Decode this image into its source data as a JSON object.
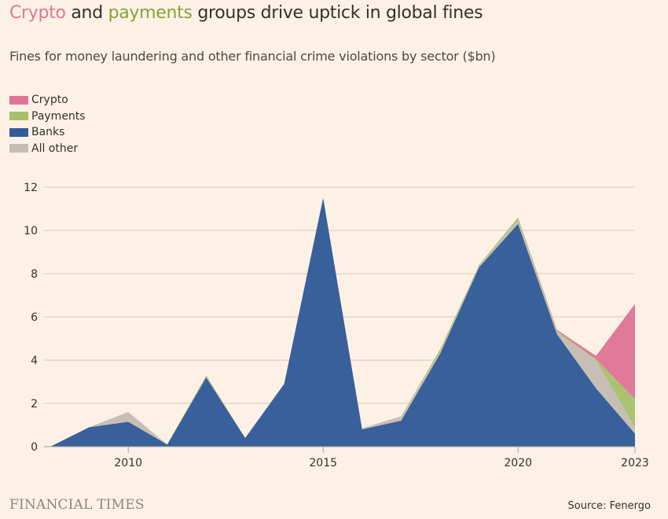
{
  "title_parts": [
    {
      "text": "Crypto",
      "color": "#e07597"
    },
    {
      "text": " and ",
      "color": "#33302e"
    },
    {
      "text": "payments",
      "color": "#85a33a"
    },
    {
      "text": " groups drive uptick in global fines",
      "color": "#33302e"
    }
  ],
  "subtitle": "Fines for money laundering and other financial crime violations by sector ($bn)",
  "brand": "FINANCIAL TIMES",
  "source": "Source: Fenergo",
  "chart_data": {
    "type": "area",
    "stacked": true,
    "title": "Crypto and payments groups drive uptick in global fines",
    "subtitle": "Fines for money laundering and other financial crime violations by sector ($bn)",
    "x": [
      2008,
      2009,
      2010,
      2011,
      2012,
      2013,
      2014,
      2015,
      2016,
      2017,
      2018,
      2019,
      2020,
      2021,
      2022,
      2023
    ],
    "xticks": [
      "2010",
      "2015",
      "2020",
      "2023"
    ],
    "xtick_values": [
      2010,
      2015,
      2020,
      2023
    ],
    "yticks": [
      "0",
      "2",
      "4",
      "6",
      "8",
      "10",
      "12"
    ],
    "ylim": [
      0,
      12
    ],
    "grid": true,
    "legend_placement": "top-left",
    "series": [
      {
        "name": "Banks",
        "color": "#325b98",
        "values": [
          0,
          0.9,
          1.15,
          0.1,
          3.2,
          0.4,
          2.9,
          11.5,
          0.8,
          1.2,
          4.3,
          8.3,
          10.3,
          5.2,
          2.7,
          0.6
        ]
      },
      {
        "name": "All other",
        "color": "#c5bcb3",
        "values": [
          0,
          0,
          0.45,
          0,
          0.05,
          0,
          0,
          0,
          0.05,
          0.2,
          0.1,
          0.05,
          0.2,
          0.1,
          1.3,
          0.3
        ]
      },
      {
        "name": "Payments",
        "color": "#a8c06a",
        "values": [
          0,
          0,
          0,
          0,
          0.05,
          0,
          0,
          0,
          0,
          0,
          0.1,
          0.05,
          0.1,
          0.05,
          0.05,
          1.3
        ]
      },
      {
        "name": "Crypto",
        "color": "#e07597",
        "values": [
          0,
          0,
          0,
          0,
          0,
          0,
          0,
          0,
          0,
          0,
          0,
          0,
          0,
          0.05,
          0.15,
          4.4
        ]
      }
    ],
    "legend_order": [
      "Crypto",
      "Payments",
      "Banks",
      "All other"
    ]
  }
}
